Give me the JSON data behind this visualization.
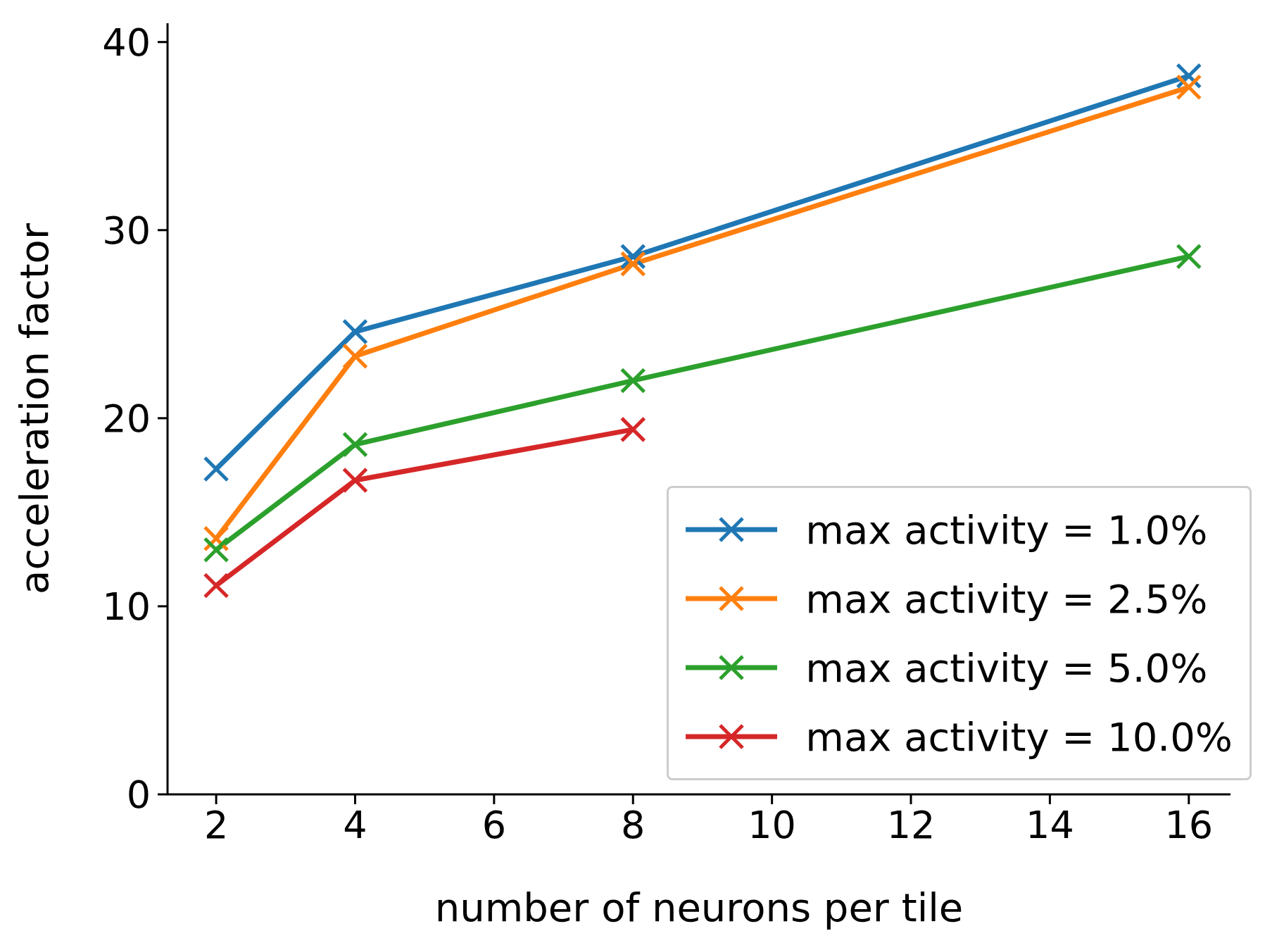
{
  "chart_data": {
    "type": "line",
    "xlabel": "number of neurons per tile",
    "ylabel": "acceleration factor",
    "xlim": [
      1.3,
      16.6
    ],
    "xticks": [
      2,
      4,
      6,
      8,
      10,
      12,
      14,
      16
    ],
    "ylim": [
      0,
      41
    ],
    "yticks": [
      0,
      10,
      20,
      30,
      40
    ],
    "x": [
      2,
      4,
      8,
      16
    ],
    "legend": "bottom right",
    "marker": "cross",
    "line_style": "solid",
    "series": [
      {
        "name": "max activity = 1.0%",
        "color": "#1f77b4",
        "values": [
          17.3,
          24.6,
          28.6,
          38.2
        ]
      },
      {
        "name": "max activity = 2.5%",
        "color": "#ff7f0e",
        "values": [
          13.6,
          23.3,
          28.2,
          37.6
        ]
      },
      {
        "name": "max activity = 5.0%",
        "color": "#2ca02c",
        "values": [
          13.0,
          18.6,
          22.0,
          28.6
        ]
      },
      {
        "name": "max activity = 10.0%",
        "color": "#d62728",
        "values": [
          11.1,
          16.7,
          19.4,
          null
        ]
      }
    ]
  }
}
